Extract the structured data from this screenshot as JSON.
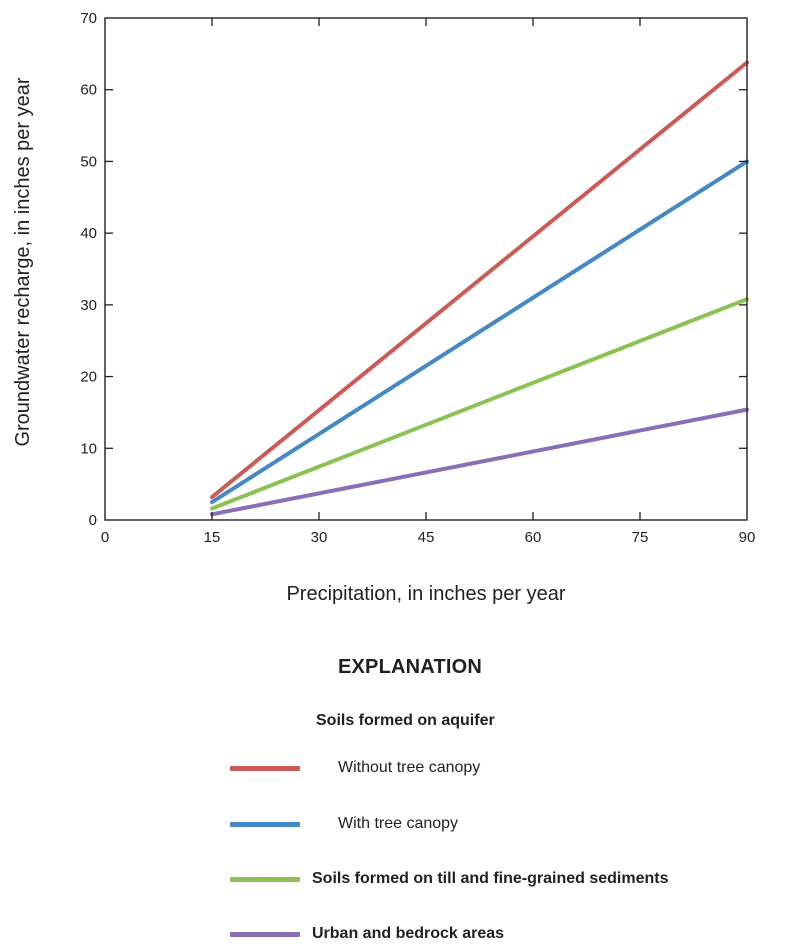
{
  "chart_data": {
    "type": "line",
    "title": "",
    "xlabel": "Precipitation, in inches per year",
    "ylabel": "Groundwater recharge, in inches per year",
    "xlim": [
      0,
      90
    ],
    "ylim": [
      0,
      70
    ],
    "xticks": [
      0,
      15,
      30,
      45,
      60,
      75,
      90
    ],
    "yticks": [
      0,
      10,
      20,
      30,
      40,
      50,
      60,
      70
    ],
    "grid": false,
    "series": [
      {
        "name": "Without tree canopy",
        "color": "#cc5b58",
        "x": [
          15,
          90
        ],
        "y": [
          3.2,
          63.8
        ]
      },
      {
        "name": "With tree canopy",
        "color": "#4488c7",
        "x": [
          15,
          90
        ],
        "y": [
          2.5,
          50.0
        ]
      },
      {
        "name": "Soils formed on till and fine-grained sediments",
        "color": "#8cc255",
        "x": [
          15,
          90
        ],
        "y": [
          1.6,
          30.8
        ]
      },
      {
        "name": "Urban and bedrock areas",
        "color": "#8a6fb6",
        "x": [
          15,
          90
        ],
        "y": [
          0.8,
          15.4
        ]
      }
    ]
  },
  "legend": {
    "title": "EXPLANATION",
    "group_heading": "Soils formed on aquifer",
    "items": [
      {
        "label": "Without tree canopy",
        "color": "#cc5b58"
      },
      {
        "label": "With tree canopy",
        "color": "#4488c7"
      },
      {
        "label": "Soils formed on till and fine-grained sediments",
        "color": "#8cc255"
      },
      {
        "label": "Urban  and bedrock areas",
        "color": "#8a6fb6"
      }
    ]
  }
}
